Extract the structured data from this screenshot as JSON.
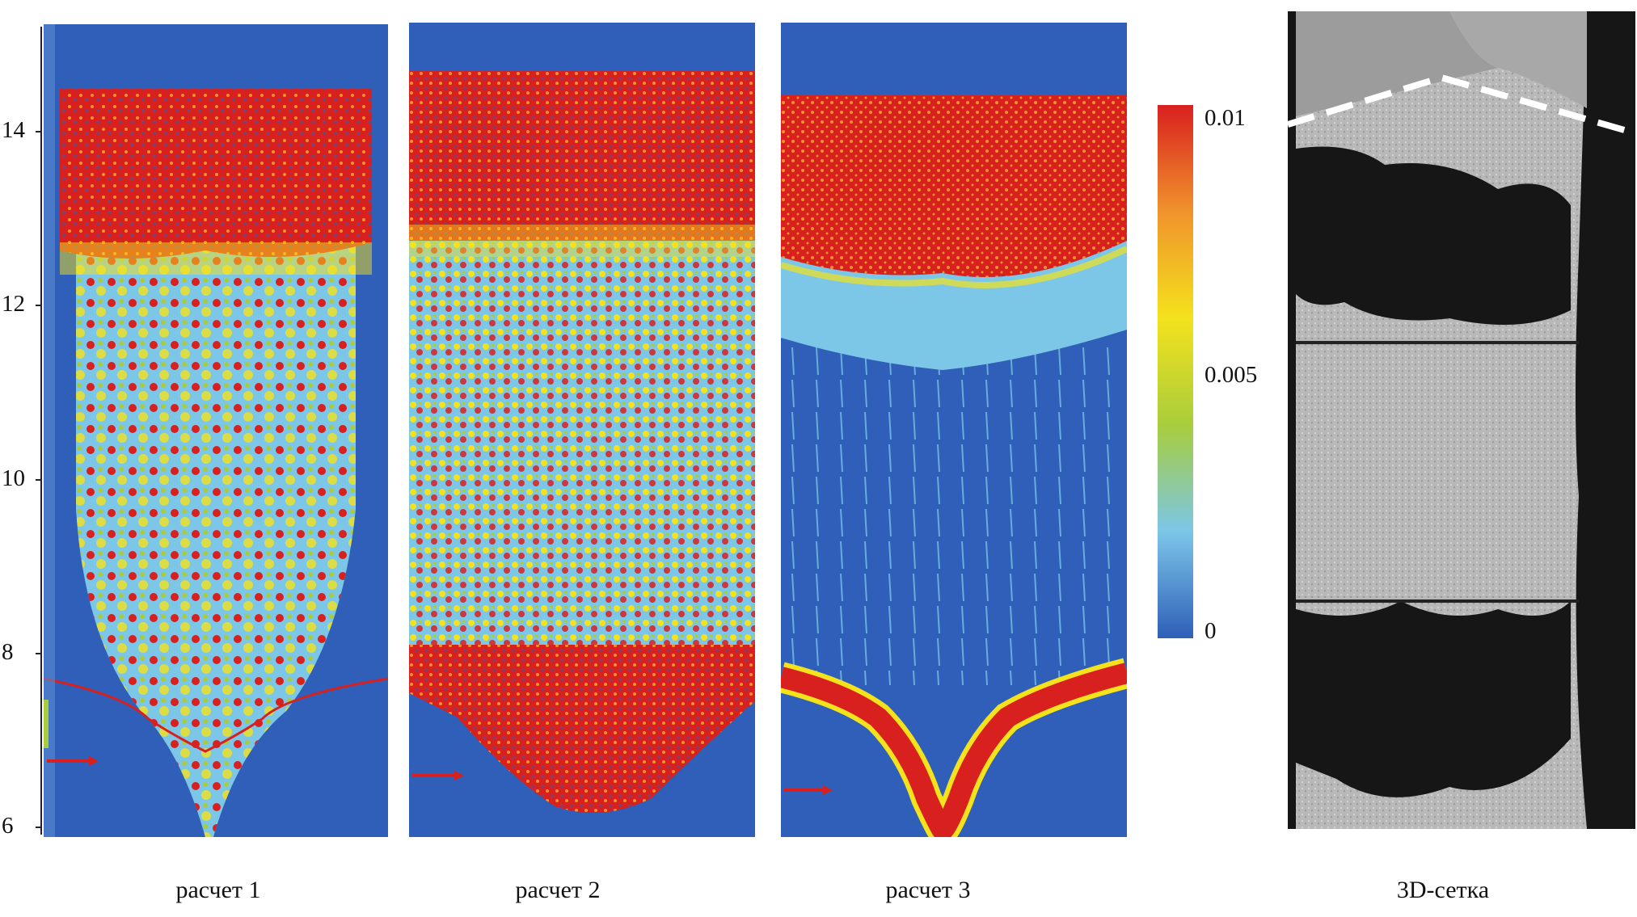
{
  "figure": {
    "y_ticks": [
      "14",
      "12",
      "10",
      "8",
      "6"
    ],
    "colorbar": {
      "max_label": "0.01",
      "mid_label": "0.005",
      "min_label": "0",
      "colors": [
        "#2f5fb8",
        "#7cc6e8",
        "#a8cd3c",
        "#f4e21c",
        "#f0932c",
        "#d8201f"
      ]
    },
    "panels": [
      {
        "caption": "расчет 1"
      },
      {
        "caption": "расчет 2"
      },
      {
        "caption": "расчет 3"
      },
      {
        "caption": "3D-сетка"
      }
    ]
  }
}
